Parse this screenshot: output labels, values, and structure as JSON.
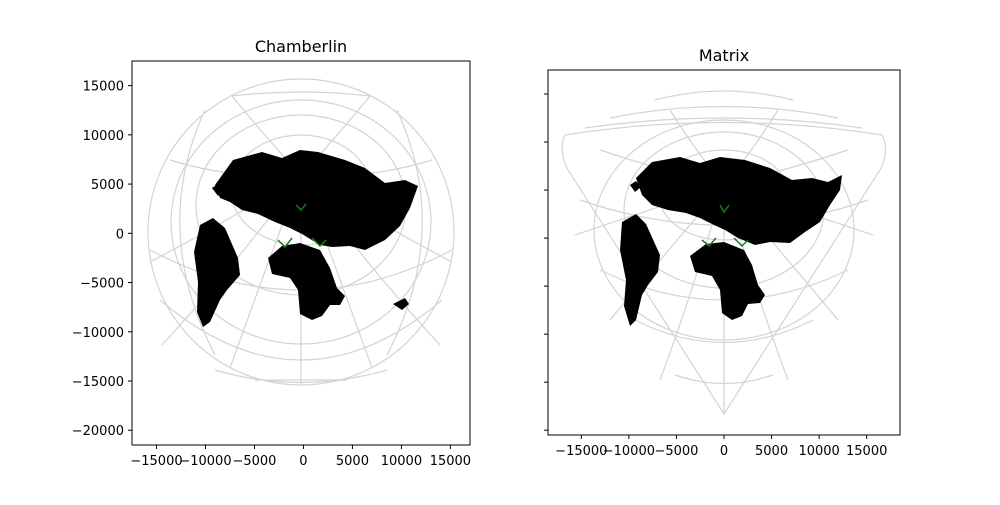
{
  "figure": {
    "background": "#ffffff",
    "graticule_color": "#d3d3d3",
    "land_color": "#000000",
    "highlight_color": "#1a7a1a"
  },
  "chart_data": [
    {
      "type": "map",
      "title": "Chamberlin",
      "xlim": [
        -17500,
        17000
      ],
      "ylim": [
        -21500,
        17500
      ],
      "xticks": [
        -15000,
        -10000,
        -5000,
        0,
        5000,
        10000,
        15000
      ],
      "xtick_labels": [
        "−15000",
        "−10000",
        "−5000",
        "0",
        "5000",
        "10000",
        "15000"
      ],
      "yticks": [
        15000,
        10000,
        5000,
        0,
        -5000,
        -10000,
        -15000,
        -20000
      ],
      "ytick_labels": [
        "15000",
        "10000",
        "5000",
        "0",
        "−5000",
        "−10000",
        "−15000",
        "−20000"
      ],
      "ytick_labels_visible": true,
      "outline": "circle",
      "outline_radius": 15500,
      "graticule": true
    },
    {
      "type": "map",
      "title": "Matrix",
      "xlim": [
        -18500,
        18500
      ],
      "ylim": [
        -20500,
        17500
      ],
      "xticks": [
        -15000,
        -10000,
        -5000,
        0,
        5000,
        10000,
        15000
      ],
      "xtick_labels": [
        "−15000",
        "−10000",
        "−5000",
        "0",
        "5000",
        "10000",
        "15000"
      ],
      "yticks": [
        15000,
        10000,
        5000,
        0,
        -5000,
        -10000,
        -15000,
        -20000
      ],
      "ytick_labels": [],
      "ytick_labels_visible": false,
      "outline": "triangle",
      "graticule": true
    }
  ]
}
